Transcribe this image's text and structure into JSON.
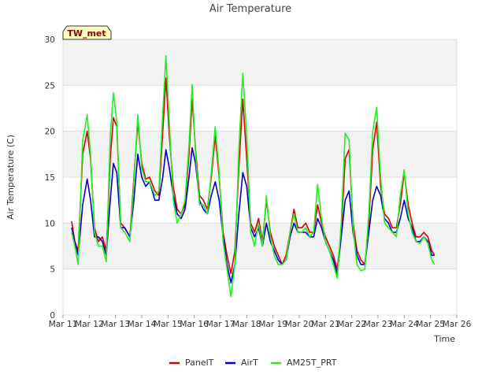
{
  "chart_data": {
    "type": "line",
    "title": "Air Temperature",
    "xlabel": "Time",
    "ylabel": "Air Temperature (C)",
    "badge": "TW_met",
    "ylim": [
      0,
      30
    ],
    "yticks": [
      0,
      5,
      10,
      15,
      20,
      25,
      30
    ],
    "xlim": [
      11,
      26
    ],
    "xticks": [
      {
        "v": 11,
        "label": "Mar 11"
      },
      {
        "v": 12,
        "label": "Mar 12"
      },
      {
        "v": 13,
        "label": "Mar 13"
      },
      {
        "v": 14,
        "label": "Mar 14"
      },
      {
        "v": 15,
        "label": "Mar 15"
      },
      {
        "v": 16,
        "label": "Mar 16"
      },
      {
        "v": 17,
        "label": "Mar 17"
      },
      {
        "v": 18,
        "label": "Mar 18"
      },
      {
        "v": 19,
        "label": "Mar 19"
      },
      {
        "v": 20,
        "label": "Mar 20"
      },
      {
        "v": 21,
        "label": "Mar 21"
      },
      {
        "v": 22,
        "label": "Mar 22"
      },
      {
        "v": 23,
        "label": "Mar 23"
      },
      {
        "v": 24,
        "label": "Mar 24"
      },
      {
        "v": 25,
        "label": "Mar 25"
      },
      {
        "v": 26,
        "label": "Mar 26"
      }
    ],
    "grid": true,
    "legend_position": "bottom",
    "series": [
      {
        "name": "PanelT",
        "color": "#dd0000",
        "points": [
          [
            11.33,
            10.2
          ],
          [
            11.45,
            8.0
          ],
          [
            11.58,
            7.0
          ],
          [
            11.75,
            17.5
          ],
          [
            11.92,
            20.0
          ],
          [
            12.05,
            17.0
          ],
          [
            12.2,
            9.5
          ],
          [
            12.35,
            8.0
          ],
          [
            12.5,
            8.5
          ],
          [
            12.65,
            7.0
          ],
          [
            12.8,
            17.0
          ],
          [
            12.92,
            21.5
          ],
          [
            13.05,
            20.5
          ],
          [
            13.2,
            10.0
          ],
          [
            13.35,
            9.5
          ],
          [
            13.55,
            8.5
          ],
          [
            13.7,
            15.0
          ],
          [
            13.85,
            21.0
          ],
          [
            14.0,
            16.5
          ],
          [
            14.15,
            14.8
          ],
          [
            14.3,
            15.0
          ],
          [
            14.5,
            13.5
          ],
          [
            14.65,
            13.0
          ],
          [
            14.8,
            20.0
          ],
          [
            14.92,
            25.8
          ],
          [
            15.05,
            19.5
          ],
          [
            15.2,
            14.0
          ],
          [
            15.35,
            11.5
          ],
          [
            15.5,
            11.0
          ],
          [
            15.65,
            12.0
          ],
          [
            15.8,
            17.5
          ],
          [
            15.92,
            23.5
          ],
          [
            16.05,
            18.0
          ],
          [
            16.2,
            13.0
          ],
          [
            16.35,
            12.5
          ],
          [
            16.5,
            11.5
          ],
          [
            16.65,
            15.0
          ],
          [
            16.8,
            19.5
          ],
          [
            16.95,
            15.0
          ],
          [
            17.1,
            9.0
          ],
          [
            17.25,
            6.5
          ],
          [
            17.4,
            4.5
          ],
          [
            17.55,
            7.0
          ],
          [
            17.7,
            16.0
          ],
          [
            17.85,
            23.5
          ],
          [
            18.0,
            17.0
          ],
          [
            18.15,
            10.0
          ],
          [
            18.3,
            9.0
          ],
          [
            18.45,
            10.5
          ],
          [
            18.6,
            8.0
          ],
          [
            18.75,
            12.5
          ],
          [
            18.9,
            9.0
          ],
          [
            19.05,
            7.5
          ],
          [
            19.2,
            6.5
          ],
          [
            19.35,
            5.5
          ],
          [
            19.5,
            6.5
          ],
          [
            19.65,
            9.0
          ],
          [
            19.8,
            11.5
          ],
          [
            19.95,
            9.5
          ],
          [
            20.1,
            9.5
          ],
          [
            20.25,
            10.0
          ],
          [
            20.4,
            9.0
          ],
          [
            20.55,
            9.0
          ],
          [
            20.7,
            12.0
          ],
          [
            20.85,
            10.0
          ],
          [
            21.0,
            8.5
          ],
          [
            21.15,
            7.5
          ],
          [
            21.3,
            6.5
          ],
          [
            21.45,
            5.0
          ],
          [
            21.6,
            9.0
          ],
          [
            21.75,
            17.0
          ],
          [
            21.9,
            18.0
          ],
          [
            22.05,
            10.0
          ],
          [
            22.2,
            7.0
          ],
          [
            22.35,
            6.0
          ],
          [
            22.5,
            5.5
          ],
          [
            22.65,
            10.0
          ],
          [
            22.8,
            18.0
          ],
          [
            22.95,
            21.0
          ],
          [
            23.1,
            14.0
          ],
          [
            23.25,
            11.0
          ],
          [
            23.4,
            10.5
          ],
          [
            23.55,
            9.5
          ],
          [
            23.7,
            9.5
          ],
          [
            23.85,
            12.0
          ],
          [
            24.0,
            15.5
          ],
          [
            24.15,
            12.0
          ],
          [
            24.3,
            10.0
          ],
          [
            24.45,
            8.5
          ],
          [
            24.6,
            8.5
          ],
          [
            24.75,
            9.0
          ],
          [
            24.9,
            8.5
          ],
          [
            25.05,
            7.0
          ],
          [
            25.15,
            6.5
          ]
        ]
      },
      {
        "name": "AirT",
        "color": "#0000cc",
        "points": [
          [
            11.33,
            9.5
          ],
          [
            11.45,
            8.0
          ],
          [
            11.58,
            6.5
          ],
          [
            11.75,
            12.0
          ],
          [
            11.92,
            14.8
          ],
          [
            12.05,
            12.5
          ],
          [
            12.2,
            8.5
          ],
          [
            12.35,
            8.5
          ],
          [
            12.5,
            8.0
          ],
          [
            12.65,
            6.5
          ],
          [
            12.8,
            12.5
          ],
          [
            12.92,
            16.5
          ],
          [
            13.05,
            15.5
          ],
          [
            13.2,
            9.5
          ],
          [
            13.35,
            9.5
          ],
          [
            13.55,
            8.5
          ],
          [
            13.7,
            12.5
          ],
          [
            13.85,
            17.5
          ],
          [
            14.0,
            15.0
          ],
          [
            14.15,
            14.0
          ],
          [
            14.3,
            14.5
          ],
          [
            14.5,
            12.5
          ],
          [
            14.65,
            12.5
          ],
          [
            14.8,
            15.0
          ],
          [
            14.92,
            18.0
          ],
          [
            15.05,
            16.0
          ],
          [
            15.2,
            13.0
          ],
          [
            15.35,
            11.0
          ],
          [
            15.5,
            10.5
          ],
          [
            15.65,
            11.5
          ],
          [
            15.8,
            15.0
          ],
          [
            15.92,
            18.2
          ],
          [
            16.05,
            16.5
          ],
          [
            16.2,
            12.5
          ],
          [
            16.35,
            11.5
          ],
          [
            16.5,
            11.0
          ],
          [
            16.65,
            13.0
          ],
          [
            16.8,
            14.5
          ],
          [
            16.95,
            12.5
          ],
          [
            17.1,
            8.5
          ],
          [
            17.25,
            5.5
          ],
          [
            17.4,
            3.5
          ],
          [
            17.55,
            5.5
          ],
          [
            17.7,
            11.0
          ],
          [
            17.85,
            15.5
          ],
          [
            18.0,
            14.0
          ],
          [
            18.15,
            9.5
          ],
          [
            18.3,
            8.5
          ],
          [
            18.45,
            9.5
          ],
          [
            18.6,
            7.5
          ],
          [
            18.75,
            10.0
          ],
          [
            18.9,
            8.0
          ],
          [
            19.05,
            7.0
          ],
          [
            19.2,
            6.0
          ],
          [
            19.35,
            5.5
          ],
          [
            19.5,
            6.0
          ],
          [
            19.65,
            8.5
          ],
          [
            19.8,
            10.0
          ],
          [
            19.95,
            9.0
          ],
          [
            20.1,
            9.0
          ],
          [
            20.25,
            9.0
          ],
          [
            20.4,
            8.5
          ],
          [
            20.55,
            8.5
          ],
          [
            20.7,
            10.5
          ],
          [
            20.85,
            9.5
          ],
          [
            21.0,
            8.0
          ],
          [
            21.15,
            7.0
          ],
          [
            21.3,
            6.0
          ],
          [
            21.45,
            4.5
          ],
          [
            21.6,
            8.5
          ],
          [
            21.75,
            12.5
          ],
          [
            21.9,
            13.5
          ],
          [
            22.05,
            9.0
          ],
          [
            22.2,
            6.5
          ],
          [
            22.35,
            5.5
          ],
          [
            22.5,
            5.5
          ],
          [
            22.65,
            9.0
          ],
          [
            22.8,
            12.5
          ],
          [
            22.95,
            14.0
          ],
          [
            23.1,
            13.0
          ],
          [
            23.25,
            10.5
          ],
          [
            23.4,
            10.0
          ],
          [
            23.55,
            9.0
          ],
          [
            23.7,
            9.0
          ],
          [
            23.85,
            10.5
          ],
          [
            24.0,
            12.5
          ],
          [
            24.15,
            10.5
          ],
          [
            24.3,
            9.5
          ],
          [
            24.45,
            8.0
          ],
          [
            24.6,
            8.0
          ],
          [
            24.75,
            8.5
          ],
          [
            24.9,
            8.0
          ],
          [
            25.05,
            6.5
          ],
          [
            25.15,
            6.5
          ]
        ]
      },
      {
        "name": "AM25T_PRT",
        "color": "#22ee22",
        "points": [
          [
            11.33,
            9.0
          ],
          [
            11.45,
            7.5
          ],
          [
            11.58,
            5.5
          ],
          [
            11.75,
            19.0
          ],
          [
            11.92,
            21.8
          ],
          [
            12.05,
            17.5
          ],
          [
            12.2,
            9.0
          ],
          [
            12.35,
            7.5
          ],
          [
            12.5,
            7.5
          ],
          [
            12.65,
            5.8
          ],
          [
            12.8,
            19.5
          ],
          [
            12.92,
            24.2
          ],
          [
            13.05,
            21.0
          ],
          [
            13.2,
            9.5
          ],
          [
            13.35,
            9.0
          ],
          [
            13.55,
            8.0
          ],
          [
            13.7,
            14.5
          ],
          [
            13.85,
            21.8
          ],
          [
            14.0,
            16.0
          ],
          [
            14.15,
            14.5
          ],
          [
            14.3,
            14.5
          ],
          [
            14.5,
            13.0
          ],
          [
            14.65,
            13.5
          ],
          [
            14.8,
            22.0
          ],
          [
            14.92,
            28.2
          ],
          [
            15.05,
            21.0
          ],
          [
            15.2,
            12.5
          ],
          [
            15.35,
            10.0
          ],
          [
            15.5,
            11.0
          ],
          [
            15.65,
            12.5
          ],
          [
            15.8,
            18.5
          ],
          [
            15.92,
            25.1
          ],
          [
            16.05,
            17.5
          ],
          [
            16.2,
            12.0
          ],
          [
            16.35,
            12.0
          ],
          [
            16.5,
            11.0
          ],
          [
            16.65,
            15.5
          ],
          [
            16.8,
            20.5
          ],
          [
            16.95,
            15.5
          ],
          [
            17.1,
            8.0
          ],
          [
            17.25,
            5.0
          ],
          [
            17.4,
            2.0
          ],
          [
            17.55,
            5.5
          ],
          [
            17.7,
            18.0
          ],
          [
            17.85,
            26.3
          ],
          [
            18.0,
            19.5
          ],
          [
            18.15,
            9.0
          ],
          [
            18.3,
            7.5
          ],
          [
            18.45,
            10.0
          ],
          [
            18.6,
            7.5
          ],
          [
            18.75,
            13.0
          ],
          [
            18.9,
            8.5
          ],
          [
            19.05,
            6.5
          ],
          [
            19.2,
            5.5
          ],
          [
            19.35,
            5.5
          ],
          [
            19.5,
            6.0
          ],
          [
            19.65,
            9.0
          ],
          [
            19.8,
            11.0
          ],
          [
            19.95,
            9.0
          ],
          [
            20.1,
            9.0
          ],
          [
            20.25,
            9.5
          ],
          [
            20.4,
            8.5
          ],
          [
            20.55,
            9.0
          ],
          [
            20.7,
            14.2
          ],
          [
            20.85,
            10.5
          ],
          [
            21.0,
            8.0
          ],
          [
            21.15,
            7.0
          ],
          [
            21.3,
            5.5
          ],
          [
            21.45,
            4.0
          ],
          [
            21.6,
            10.0
          ],
          [
            21.75,
            19.8
          ],
          [
            21.9,
            19.0
          ],
          [
            22.05,
            9.5
          ],
          [
            22.2,
            5.5
          ],
          [
            22.35,
            4.8
          ],
          [
            22.5,
            5.0
          ],
          [
            22.65,
            11.0
          ],
          [
            22.8,
            20.0
          ],
          [
            22.95,
            22.6
          ],
          [
            23.1,
            15.0
          ],
          [
            23.25,
            10.0
          ],
          [
            23.4,
            9.5
          ],
          [
            23.55,
            9.0
          ],
          [
            23.7,
            8.5
          ],
          [
            23.85,
            13.0
          ],
          [
            24.0,
            15.8
          ],
          [
            24.15,
            11.0
          ],
          [
            24.3,
            9.0
          ],
          [
            24.45,
            8.0
          ],
          [
            24.6,
            7.8
          ],
          [
            24.75,
            8.5
          ],
          [
            24.9,
            7.8
          ],
          [
            25.05,
            6.0
          ],
          [
            25.15,
            5.5
          ]
        ]
      }
    ]
  }
}
